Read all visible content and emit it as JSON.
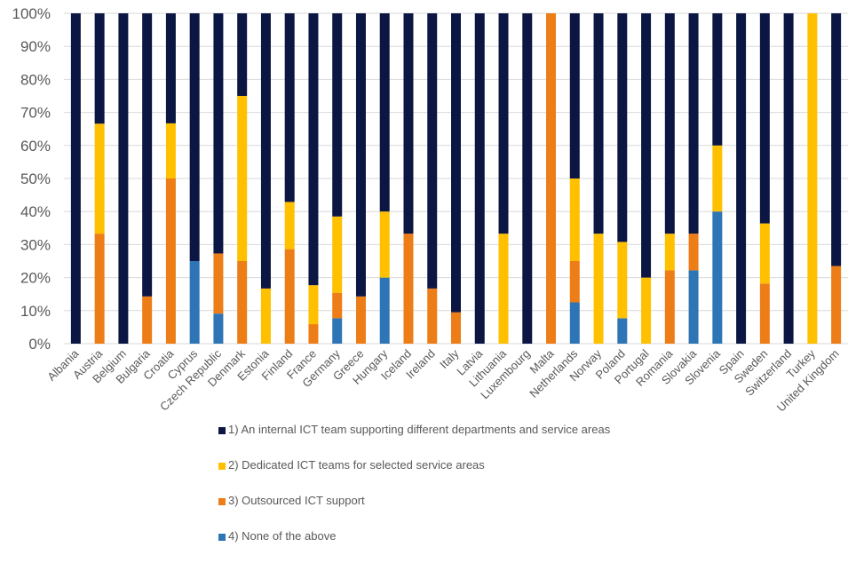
{
  "chart_data": {
    "type": "bar",
    "stacked": true,
    "normalized": true,
    "categories": [
      "Albania",
      "Austria",
      "Belgium",
      "Bulgaria",
      "Croatia",
      "Cyprus",
      "Czech Republic",
      "Denmark",
      "Estonia",
      "Finland",
      "France",
      "Germany",
      "Greece",
      "Hungary",
      "Iceland",
      "Ireland",
      "Italy",
      "Latvia",
      "Lithuania",
      "Luxembourg",
      "Malta",
      "Netherlands",
      "Norway",
      "Poland",
      "Portugal",
      "Romania",
      "Slovakia",
      "Slovenia",
      "Spain",
      "Sweden",
      "Switzerland",
      "Turkey",
      "United Kingdom"
    ],
    "series": [
      {
        "name": "4) None of the above",
        "color": "#2e75b6",
        "values": [
          0,
          0,
          0,
          0,
          0,
          25,
          9.1,
          0,
          0,
          0,
          0,
          7.7,
          0,
          20,
          0,
          0,
          0,
          0,
          0,
          0,
          0,
          12.5,
          0,
          7.7,
          0,
          0,
          22.2,
          40,
          0,
          0,
          0,
          0,
          0
        ]
      },
      {
        "name": "3) Outsourced ICT support",
        "color": "#ed7d16",
        "values": [
          0,
          33.3,
          0,
          14.3,
          50,
          0,
          18.2,
          25,
          0,
          28.6,
          5.9,
          7.7,
          14.3,
          0,
          33.3,
          16.7,
          9.5,
          0,
          0,
          0,
          100,
          12.5,
          0,
          0,
          0,
          22.2,
          11.1,
          0,
          0,
          18.2,
          0,
          0,
          23.5
        ]
      },
      {
        "name": "2) Dedicated ICT teams for selected service areas",
        "color": "#ffc000",
        "values": [
          0,
          33.3,
          0,
          0,
          16.7,
          0,
          0,
          50,
          16.7,
          14.3,
          11.8,
          23.1,
          0,
          20,
          0,
          0,
          0,
          0,
          33.3,
          0,
          0,
          25,
          33.3,
          23.1,
          20,
          11.1,
          0,
          20,
          0,
          18.2,
          0,
          100,
          0
        ]
      },
      {
        "name": "1) An internal ICT team supporting different departments and service areas",
        "color": "#0c1642",
        "values": [
          100,
          33.4,
          100,
          85.7,
          33.3,
          75,
          72.7,
          25,
          83.3,
          57.1,
          82.3,
          61.5,
          85.7,
          60,
          66.7,
          83.3,
          90.5,
          100,
          66.7,
          100,
          0,
          50,
          66.7,
          69.2,
          80,
          66.7,
          66.7,
          40,
          100,
          63.6,
          100,
          0,
          76.5
        ]
      }
    ],
    "ylim": [
      0,
      100
    ],
    "yticks": [
      "0%",
      "10%",
      "20%",
      "30%",
      "40%",
      "50%",
      "60%",
      "70%",
      "80%",
      "90%",
      "100%"
    ],
    "grid": true,
    "legend_position": "bottom",
    "legend": [
      {
        "label": "1) An internal ICT team supporting different departments and service areas",
        "color": "#0c1642"
      },
      {
        "label": "2) Dedicated ICT teams for selected service areas",
        "color": "#ffc000"
      },
      {
        "label": "3) Outsourced ICT support",
        "color": "#ed7d16"
      },
      {
        "label": "4) None of the above",
        "color": "#2e75b6"
      }
    ]
  }
}
